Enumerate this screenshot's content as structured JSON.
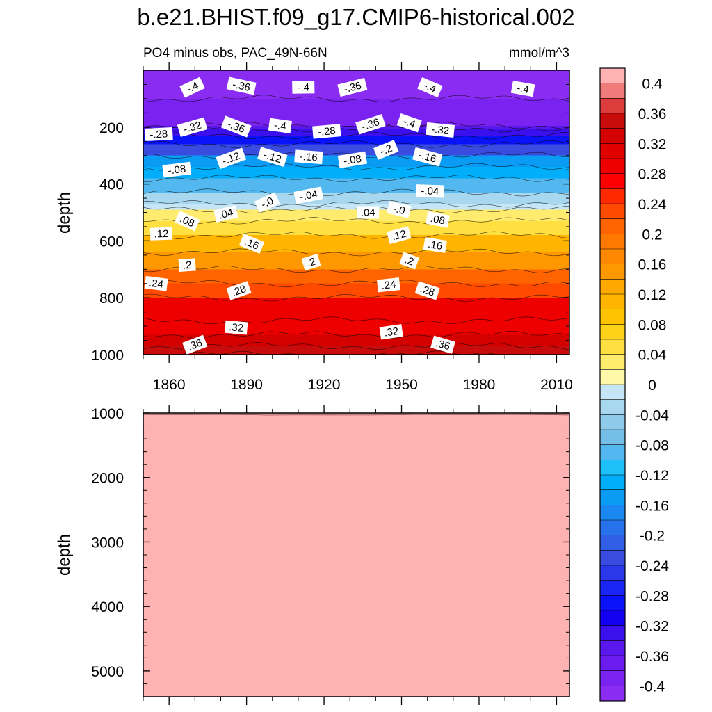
{
  "title": "b.e21.BHIST.f09_g17.CMIP6-historical.002",
  "colors": {
    "frame": "#000000",
    "lower_fill": "#ffb2b2"
  },
  "chart_data": [
    {
      "type": "heatmap",
      "panel": "upper",
      "subtitle_left": "PO4 minus obs, PAC_49N-66N",
      "subtitle_right": "mmol/m^3",
      "xlabel": "",
      "ylabel": "depth",
      "xlim": [
        1850,
        2015
      ],
      "ylim": [
        1000,
        0
      ],
      "x_ticks": [
        "1860",
        "1890",
        "1920",
        "1950",
        "1980",
        "2010"
      ],
      "x_tick_values": [
        1860,
        1890,
        1920,
        1950,
        1980,
        2010
      ],
      "y_ticks": [
        "200",
        "400",
        "600",
        "800",
        "1000"
      ],
      "y_tick_values": [
        200,
        400,
        600,
        800,
        1000
      ],
      "levels": [
        {
          "depth": 0,
          "value": -0.4
        },
        {
          "depth": 100,
          "value": -0.38
        },
        {
          "depth": 195,
          "value": -0.34
        },
        {
          "depth": 205,
          "value": -0.32
        },
        {
          "depth": 230,
          "value": -0.28
        },
        {
          "depth": 260,
          "value": -0.22
        },
        {
          "depth": 300,
          "value": -0.16
        },
        {
          "depth": 340,
          "value": -0.12
        },
        {
          "depth": 380,
          "value": -0.08
        },
        {
          "depth": 430,
          "value": -0.04
        },
        {
          "depth": 470,
          "value": -0.01
        },
        {
          "depth": 490,
          "value": 0.02
        },
        {
          "depth": 530,
          "value": 0.06
        },
        {
          "depth": 580,
          "value": 0.12
        },
        {
          "depth": 640,
          "value": 0.16
        },
        {
          "depth": 700,
          "value": 0.2
        },
        {
          "depth": 750,
          "value": 0.24
        },
        {
          "depth": 800,
          "value": 0.28
        },
        {
          "depth": 880,
          "value": 0.3
        },
        {
          "depth": 930,
          "value": 0.32
        },
        {
          "depth": 970,
          "value": 0.36
        },
        {
          "depth": 1000,
          "value": 0.4
        }
      ],
      "contour_labels": [
        {
          "text": "-.4",
          "year": 1869,
          "depth": 60
        },
        {
          "text": "-.36",
          "year": 1888,
          "depth": 55
        },
        {
          "text": "-.4",
          "year": 1912,
          "depth": 60
        },
        {
          "text": "-.36",
          "year": 1931,
          "depth": 60
        },
        {
          "text": "-.4",
          "year": 1961,
          "depth": 60
        },
        {
          "text": "-.4",
          "year": 1997,
          "depth": 65
        },
        {
          "text": "-.28",
          "year": 1856,
          "depth": 225
        },
        {
          "text": "-.32",
          "year": 1869,
          "depth": 200
        },
        {
          "text": "-.36",
          "year": 1886,
          "depth": 198
        },
        {
          "text": "-.4",
          "year": 1903,
          "depth": 195
        },
        {
          "text": "-.28",
          "year": 1921,
          "depth": 215
        },
        {
          "text": "-.36",
          "year": 1938,
          "depth": 190
        },
        {
          "text": "-.4",
          "year": 1953,
          "depth": 185
        },
        {
          "text": "-.32",
          "year": 1965,
          "depth": 210
        },
        {
          "text": "-.08",
          "year": 1863,
          "depth": 350
        },
        {
          "text": "-.12",
          "year": 1884,
          "depth": 310
        },
        {
          "text": "-.12",
          "year": 1900,
          "depth": 305
        },
        {
          "text": "-.16",
          "year": 1914,
          "depth": 305
        },
        {
          "text": "-.08",
          "year": 1931,
          "depth": 315
        },
        {
          "text": "-.2",
          "year": 1944,
          "depth": 280
        },
        {
          "text": "-.16",
          "year": 1960,
          "depth": 305
        },
        {
          "text": "-.04",
          "year": 1961,
          "depth": 425
        },
        {
          "text": "-.04",
          "year": 1914,
          "depth": 440
        },
        {
          "text": "-.0",
          "year": 1898,
          "depth": 465
        },
        {
          "text": "-.0",
          "year": 1949,
          "depth": 490
        },
        {
          "text": ".04",
          "year": 1937,
          "depth": 500
        },
        {
          "text": ".04",
          "year": 1882,
          "depth": 505
        },
        {
          "text": ".08",
          "year": 1867,
          "depth": 530
        },
        {
          "text": ".08",
          "year": 1964,
          "depth": 525
        },
        {
          "text": ".12",
          "year": 1857,
          "depth": 575
        },
        {
          "text": ".12",
          "year": 1949,
          "depth": 580
        },
        {
          "text": ".16",
          "year": 1892,
          "depth": 610
        },
        {
          "text": ".16",
          "year": 1963,
          "depth": 615
        },
        {
          "text": ".2",
          "year": 1867,
          "depth": 685
        },
        {
          "text": ".2",
          "year": 1915,
          "depth": 675
        },
        {
          "text": ".2",
          "year": 1953,
          "depth": 670
        },
        {
          "text": ".24",
          "year": 1855,
          "depth": 750
        },
        {
          "text": ".24",
          "year": 1945,
          "depth": 755
        },
        {
          "text": ".28",
          "year": 1887,
          "depth": 775
        },
        {
          "text": ".28",
          "year": 1960,
          "depth": 775
        },
        {
          "text": ".32",
          "year": 1886,
          "depth": 905
        },
        {
          "text": ".32",
          "year": 1946,
          "depth": 920
        },
        {
          "text": ".36",
          "year": 1870,
          "depth": 965
        },
        {
          "text": ".36",
          "year": 1966,
          "depth": 965
        }
      ]
    },
    {
      "type": "heatmap",
      "panel": "lower",
      "ylabel": "depth",
      "xlim": [
        1850,
        2015
      ],
      "ylim": [
        5400,
        1000
      ],
      "y_ticks": [
        "1000",
        "2000",
        "3000",
        "4000",
        "5000"
      ],
      "y_tick_values": [
        1000,
        2000,
        3000,
        4000,
        5000
      ],
      "fill_value": 0.4
    }
  ],
  "colorbar": {
    "labels": [
      "0.4",
      "0.36",
      "0.32",
      "0.28",
      "0.24",
      "0.2",
      "0.16",
      "0.12",
      "0.08",
      "0.04",
      "0",
      "-0.04",
      "-0.08",
      "-0.12",
      "-0.16",
      "-0.2",
      "-0.24",
      "-0.28",
      "-0.32",
      "-0.36",
      "-0.4"
    ],
    "label_values": [
      0.4,
      0.36,
      0.32,
      0.28,
      0.24,
      0.2,
      0.16,
      0.12,
      0.08,
      0.04,
      0,
      -0.04,
      -0.08,
      -0.12,
      -0.16,
      -0.2,
      -0.24,
      -0.28,
      -0.32,
      -0.36,
      -0.4
    ],
    "vmin": -0.42,
    "vmax": 0.42,
    "step": 0.02,
    "palette": [
      "#ffb2b2",
      "#f07b7b",
      "#dc3c3c",
      "#c80c0c",
      "#d40000",
      "#e00000",
      "#ee0000",
      "#ff0000",
      "#ff2a00",
      "#ff4a00",
      "#ff6400",
      "#ff7800",
      "#ff8800",
      "#ff9800",
      "#ffa800",
      "#ffb400",
      "#ffc400",
      "#ffd21a",
      "#ffe040",
      "#ffec6e",
      "#fff8a8",
      "#c4e6f7",
      "#a8d8f0",
      "#8ecbeb",
      "#74bfe8",
      "#52b8ef",
      "#1ec0fa",
      "#00aefa",
      "#0a9bf5",
      "#1a88f0",
      "#2672ea",
      "#305ee4",
      "#3a4ce0",
      "#2a38ea",
      "#1c26f4",
      "#0a12fa",
      "#1400f0",
      "#3c10ec",
      "#5a18ec",
      "#6a1cee",
      "#7a22f0",
      "#8a2cf2"
    ]
  }
}
